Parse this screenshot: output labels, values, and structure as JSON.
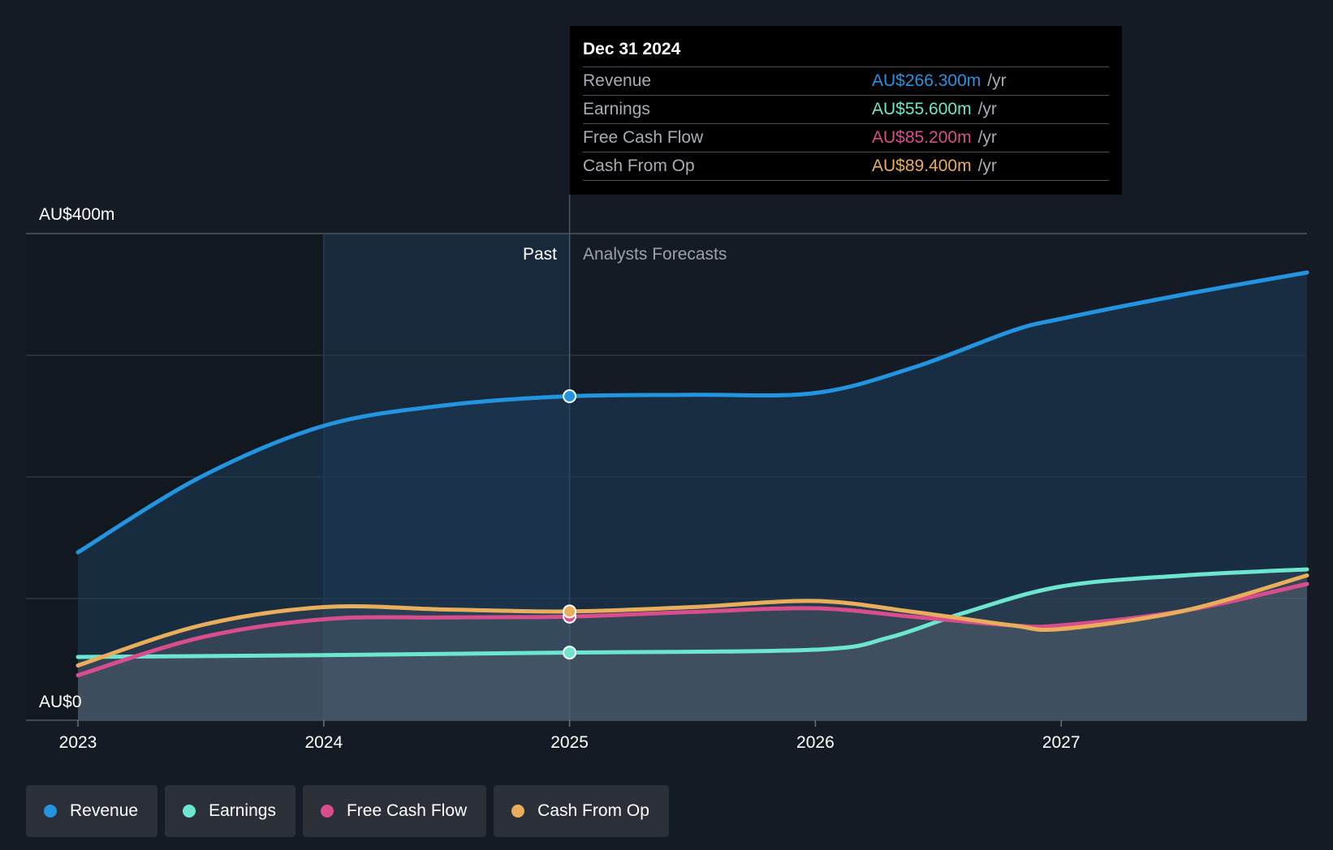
{
  "tooltip": {
    "date": "Dec 31 2024",
    "unit": "/yr",
    "rows": [
      {
        "name": "Revenue",
        "value": "AU$266.300m",
        "color": "#2394df"
      },
      {
        "name": "Earnings",
        "value": "AU$55.600m",
        "color": "#6ce6cf"
      },
      {
        "name": "Free Cash Flow",
        "value": "AU$85.200m",
        "color": "#d84e8c"
      },
      {
        "name": "Cash From Op",
        "value": "AU$89.400m",
        "color": "#e8ae5c"
      }
    ]
  },
  "regions": {
    "past": "Past",
    "forecast": "Analysts Forecasts"
  },
  "legend": [
    {
      "label": "Revenue",
      "color": "#2394df"
    },
    {
      "label": "Earnings",
      "color": "#6ce6cf"
    },
    {
      "label": "Free Cash Flow",
      "color": "#d84e8c"
    },
    {
      "label": "Cash From Op",
      "color": "#e8ae5c"
    }
  ],
  "chart_data": {
    "type": "line",
    "ylim": [
      0,
      400
    ],
    "y_tick_labels": [
      "AU$0",
      "AU$400m"
    ],
    "x_ticks": [
      2023,
      2024,
      2025,
      2026,
      2027
    ],
    "x_tick_labels": [
      "2023",
      "2024",
      "2025",
      "2026",
      "2027"
    ],
    "xlim": [
      2023,
      2028.0
    ],
    "past_end": 2025,
    "grid": true,
    "legend_position": "bottom",
    "series": [
      {
        "name": "Revenue",
        "color": "#2394df",
        "x": [
          2023,
          2023.5,
          2024,
          2024.5,
          2025,
          2025.5,
          2026,
          2026.4,
          2026.8,
          2027,
          2027.5,
          2028.0
        ],
        "y": [
          138,
          200,
          242,
          259,
          266.3,
          267.5,
          269,
          290,
          320,
          330,
          350,
          368
        ]
      },
      {
        "name": "Earnings",
        "color": "#6ce6cf",
        "x": [
          2023,
          2024,
          2025,
          2026,
          2026.3,
          2026.6,
          2027,
          2027.5,
          2028.0
        ],
        "y": [
          52,
          53.5,
          55.6,
          58,
          68,
          88,
          110,
          119,
          124
        ]
      },
      {
        "name": "Free Cash Flow",
        "color": "#d84e8c",
        "x": [
          2023,
          2023.5,
          2024,
          2024.5,
          2025,
          2025.5,
          2026,
          2026.4,
          2026.8,
          2027,
          2027.5,
          2028.0
        ],
        "y": [
          37,
          68,
          83,
          84.5,
          85.2,
          89,
          92,
          85,
          78,
          78,
          90,
          112
        ]
      },
      {
        "name": "Cash From Op",
        "color": "#e8ae5c",
        "x": [
          2023,
          2023.5,
          2024,
          2024.5,
          2025,
          2025.5,
          2026,
          2026.4,
          2026.8,
          2027,
          2027.5,
          2028.0
        ],
        "y": [
          45,
          78,
          93,
          91,
          89.4,
          93,
          98,
          89,
          78,
          75,
          90,
          119
        ]
      }
    ]
  }
}
